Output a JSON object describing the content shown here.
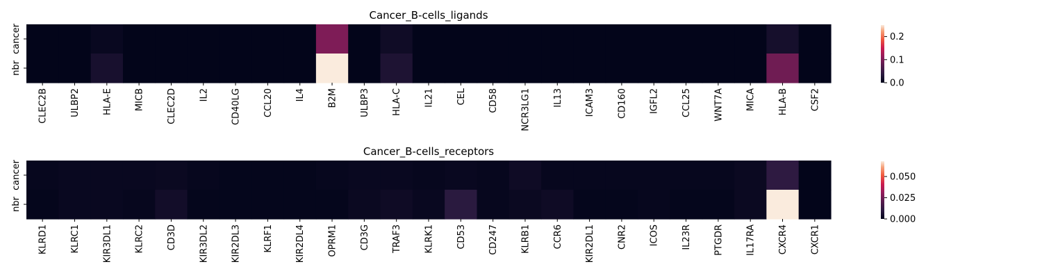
{
  "chart_data": [
    {
      "type": "heatmap",
      "title": "Cancer_B-cells_ligands",
      "rows": [
        "cancer",
        "nbr"
      ],
      "columns": [
        "CLEC2B",
        "ULBP2",
        "HLA-E",
        "MICB",
        "CLEC2D",
        "IL2",
        "CD40LG",
        "CCL20",
        "IL4",
        "B2M",
        "ULBP3",
        "HLA-C",
        "IL21",
        "CEL",
        "CD58",
        "NCR3LG1",
        "IL13",
        "ICAM3",
        "CD160",
        "IGFL2",
        "CCL25",
        "WNT7A",
        "MICA",
        "HLA-B",
        "CSF2"
      ],
      "values": [
        [
          0.0,
          0.0,
          0.006,
          0.0,
          0.0,
          0.0,
          0.0,
          0.0,
          0.0,
          0.1,
          0.0,
          0.012,
          0.0,
          0.0,
          0.0,
          0.0,
          0.0,
          0.0,
          0.0,
          0.0,
          0.0,
          0.0,
          0.0,
          0.018,
          0.0
        ],
        [
          0.0,
          0.0,
          0.02,
          0.0,
          0.0,
          0.0,
          0.0,
          0.0,
          0.0,
          0.25,
          0.0,
          0.025,
          0.0,
          0.0,
          0.0,
          0.0,
          0.0,
          0.0,
          0.0,
          0.0,
          0.0,
          0.0,
          0.0,
          0.09,
          0.0
        ]
      ],
      "colorbar": {
        "min": 0.0,
        "max": 0.25,
        "ticks": [
          "0.0",
          "0.1",
          "0.2"
        ],
        "tick_values": [
          0.0,
          0.1,
          0.2
        ]
      }
    },
    {
      "type": "heatmap",
      "title": "Cancer_B-cells_receptors",
      "rows": [
        "cancer",
        "nbr"
      ],
      "columns": [
        "KLRD1",
        "KLRC1",
        "KIR3DL1",
        "KLRC2",
        "CD3D",
        "KIR3DL2",
        "KIR2DL3",
        "KLRF1",
        "KIR2DL4",
        "OPRM1",
        "CD3G",
        "TRAF3",
        "KLRK1",
        "CD53",
        "CD247",
        "KLRB1",
        "CCR6",
        "KIR2DL1",
        "CNR2",
        "ICOS",
        "IL23R",
        "PTGDR",
        "IL17RA",
        "CXCR4",
        "CXCR1"
      ],
      "values": [
        [
          0.001,
          0.0015,
          0.0015,
          0.0015,
          0.002,
          0.001,
          0.0005,
          0.0005,
          0.0005,
          0.001,
          0.0015,
          0.0015,
          0.001,
          0.0015,
          0.001,
          0.003,
          0.001,
          0.001,
          0.001,
          0.001,
          0.001,
          0.001,
          0.002,
          0.011,
          0.0
        ],
        [
          0.0005,
          0.0015,
          0.0015,
          0.001,
          0.004,
          0.0005,
          0.0005,
          0.0005,
          0.0005,
          0.0005,
          0.002,
          0.003,
          0.0015,
          0.01,
          0.001,
          0.002,
          0.003,
          0.0005,
          0.0005,
          0.001,
          0.0005,
          0.0005,
          0.002,
          0.068,
          0.0
        ]
      ],
      "colorbar": {
        "min": 0.0,
        "max": 0.068,
        "ticks": [
          "0.000",
          "0.025",
          "0.050"
        ],
        "tick_values": [
          0.0,
          0.025,
          0.05
        ]
      }
    }
  ]
}
